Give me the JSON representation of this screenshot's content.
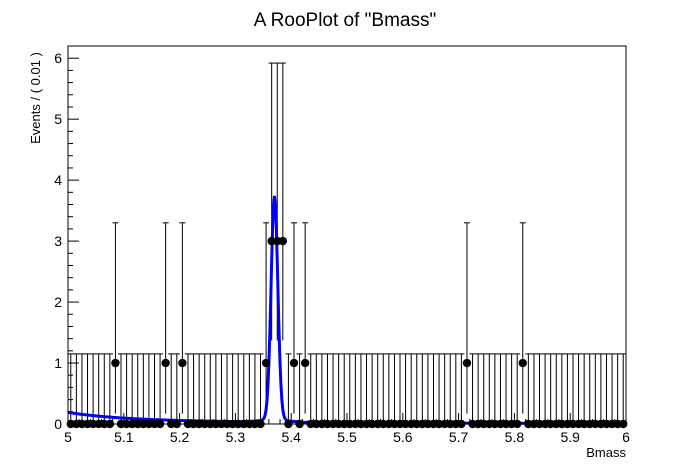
{
  "chart_data": {
    "type": "scatter",
    "title": "A RooPlot of \"Bmass\"",
    "xlabel": "Bmass",
    "ylabel": "Events / ( 0.01 )",
    "xlim": [
      5,
      6
    ],
    "ylim": [
      0,
      6.2
    ],
    "xticks": [
      5,
      5.1,
      5.2,
      5.3,
      5.4,
      5.5,
      5.6,
      5.7,
      5.8,
      5.9,
      6
    ],
    "xtick_labels": [
      "5",
      "5.1",
      "5.2",
      "5.3",
      "5.4",
      "5.5",
      "5.6",
      "5.7",
      "5.8",
      "5.9",
      "6"
    ],
    "yticks": [
      0,
      1,
      2,
      3,
      4,
      5,
      6
    ],
    "ytick_labels": [
      "0",
      "1",
      "2",
      "3",
      "4",
      "5",
      "6"
    ],
    "grid": false,
    "legend": "none",
    "bin_width": 0.01,
    "series": [
      {
        "kind": "data-points",
        "color": "#000000",
        "x_start": 5.005,
        "counts": [
          0,
          0,
          0,
          0,
          0,
          0,
          0,
          0,
          1,
          0,
          0,
          0,
          0,
          0,
          0,
          0,
          0,
          1,
          0,
          0,
          1,
          0,
          0,
          0,
          0,
          0,
          0,
          0,
          0,
          0,
          0,
          0,
          0,
          0,
          0,
          1,
          3,
          3,
          3,
          0,
          1,
          0,
          1,
          0,
          0,
          0,
          0,
          0,
          0,
          0,
          0,
          0,
          0,
          0,
          0,
          0,
          0,
          0,
          0,
          0,
          0,
          0,
          0,
          0,
          0,
          0,
          0,
          0,
          0,
          0,
          0,
          1,
          0,
          0,
          0,
          0,
          0,
          0,
          0,
          0,
          0,
          1,
          0,
          0,
          0,
          0,
          0,
          0,
          0,
          0,
          0,
          0,
          0,
          0,
          0,
          0,
          0,
          0,
          0,
          0
        ],
        "error_hi": {
          "0": 1.15,
          "1": 2.3,
          "3": 2.92
        }
      },
      {
        "kind": "fit-curve",
        "color": "#0000ff",
        "background": {
          "a0": 0.13,
          "a1": 0.06,
          "slope": 10
        },
        "peak": {
          "mean": 5.37,
          "sigma": 0.006,
          "height": 3.55
        }
      }
    ]
  }
}
